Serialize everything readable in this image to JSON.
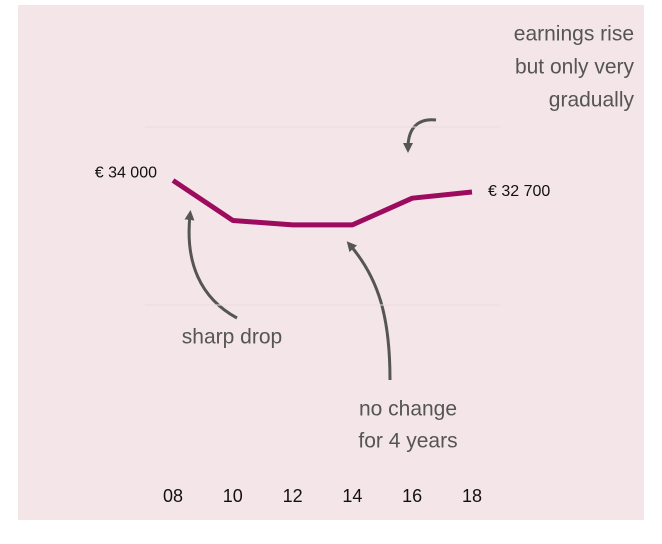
{
  "chart_data": {
    "type": "line",
    "categories": [
      "08",
      "10",
      "12",
      "14",
      "16",
      "18"
    ],
    "series": [
      {
        "color": "#9c0b5e",
        "values": [
          34000,
          29500,
          29000,
          29000,
          32000,
          32700
        ],
        "value_labels": [
          "€ 34 000",
          null,
          null,
          null,
          null,
          "€ 32 700"
        ]
      }
    ],
    "ylim": [
      0,
      40000
    ],
    "yticks": [
      20000,
      40000
    ],
    "grid": true,
    "ytick_labels": false,
    "annotations": [
      {
        "lines": [
          "earnings rise",
          "but only very",
          "gradually"
        ]
      },
      {
        "lines": [
          "sharp drop"
        ]
      },
      {
        "lines": [
          "no change",
          "for 4 years"
        ]
      }
    ]
  }
}
